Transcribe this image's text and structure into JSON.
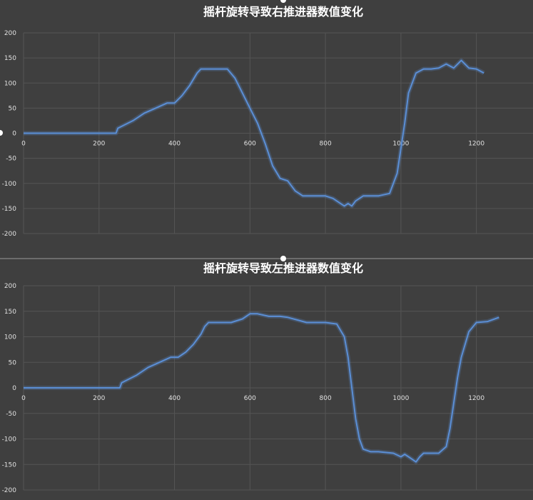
{
  "colors": {
    "background": "#3f3f3f",
    "series": "#5b8fd6",
    "grid": "#555555",
    "text": "#ffffff"
  },
  "chart_data": [
    {
      "type": "line",
      "title": "摇杆旋转导致右推进器数值变化",
      "xlabel": "",
      "ylabel": "",
      "xlim": [
        0,
        1350
      ],
      "ylim": [
        -200,
        200
      ],
      "x_ticks": [
        0,
        200,
        400,
        600,
        800,
        1000,
        1200
      ],
      "x_tick_labels": [
        "0",
        "200",
        "400",
        "600",
        "800",
        "1000",
        "1200"
      ],
      "y_ticks": [
        200,
        150,
        100,
        50,
        0,
        -50,
        -100,
        -150,
        -200
      ],
      "y_tick_labels": [
        "200",
        "150",
        "100",
        "50",
        "0",
        "-50",
        "-100",
        "-150",
        "-200"
      ],
      "grid": true,
      "series": [
        {
          "x": [
            0,
            245,
            250,
            290,
            320,
            350,
            380,
            400,
            420,
            440,
            460,
            470,
            480,
            500,
            520,
            540,
            560,
            580,
            600,
            620,
            640,
            660,
            680,
            700,
            720,
            740,
            760,
            780,
            800,
            820,
            840,
            850,
            860,
            870,
            880,
            900,
            940,
            970,
            990,
            1000,
            1010,
            1020,
            1040,
            1060,
            1080,
            1100,
            1120,
            1140,
            1160,
            1180,
            1200,
            1220
          ],
          "y": [
            0,
            0,
            10,
            25,
            40,
            50,
            60,
            60,
            75,
            95,
            120,
            128,
            128,
            128,
            128,
            128,
            110,
            80,
            50,
            20,
            -20,
            -65,
            -90,
            -95,
            -115,
            -125,
            -125,
            -125,
            -125,
            -130,
            -140,
            -145,
            -140,
            -145,
            -135,
            -125,
            -125,
            -120,
            -80,
            -30,
            20,
            80,
            120,
            128,
            128,
            130,
            138,
            130,
            145,
            130,
            128,
            120
          ]
        }
      ]
    },
    {
      "type": "line",
      "title": "摇杆旋转导致左推进器数值变化",
      "xlabel": "",
      "ylabel": "",
      "xlim": [
        0,
        1350
      ],
      "ylim": [
        -200,
        200
      ],
      "x_ticks": [
        0,
        200,
        400,
        600,
        800,
        1000,
        1200
      ],
      "x_tick_labels": [
        "0",
        "200",
        "400",
        "600",
        "800",
        "1000",
        "1200"
      ],
      "y_ticks": [
        200,
        150,
        100,
        50,
        0,
        -50,
        -100,
        -150,
        -200
      ],
      "y_tick_labels": [
        "200",
        "150",
        "100",
        "50",
        "0",
        "-50",
        "-100",
        "-150",
        "-200"
      ],
      "grid": true,
      "series": [
        {
          "x": [
            0,
            255,
            260,
            300,
            330,
            360,
            390,
            410,
            430,
            450,
            470,
            480,
            490,
            500,
            550,
            580,
            600,
            620,
            650,
            680,
            700,
            750,
            800,
            830,
            850,
            860,
            870,
            880,
            890,
            900,
            920,
            940,
            980,
            1000,
            1010,
            1020,
            1030,
            1040,
            1050,
            1060,
            1100,
            1120,
            1130,
            1140,
            1150,
            1160,
            1180,
            1200,
            1230,
            1260
          ],
          "y": [
            0,
            0,
            10,
            25,
            40,
            50,
            60,
            60,
            70,
            85,
            105,
            120,
            128,
            128,
            128,
            135,
            145,
            145,
            140,
            140,
            138,
            128,
            128,
            125,
            100,
            60,
            0,
            -60,
            -100,
            -120,
            -125,
            -125,
            -128,
            -135,
            -130,
            -135,
            -140,
            -145,
            -135,
            -128,
            -128,
            -115,
            -80,
            -30,
            20,
            60,
            110,
            128,
            130,
            138
          ]
        }
      ]
    }
  ]
}
